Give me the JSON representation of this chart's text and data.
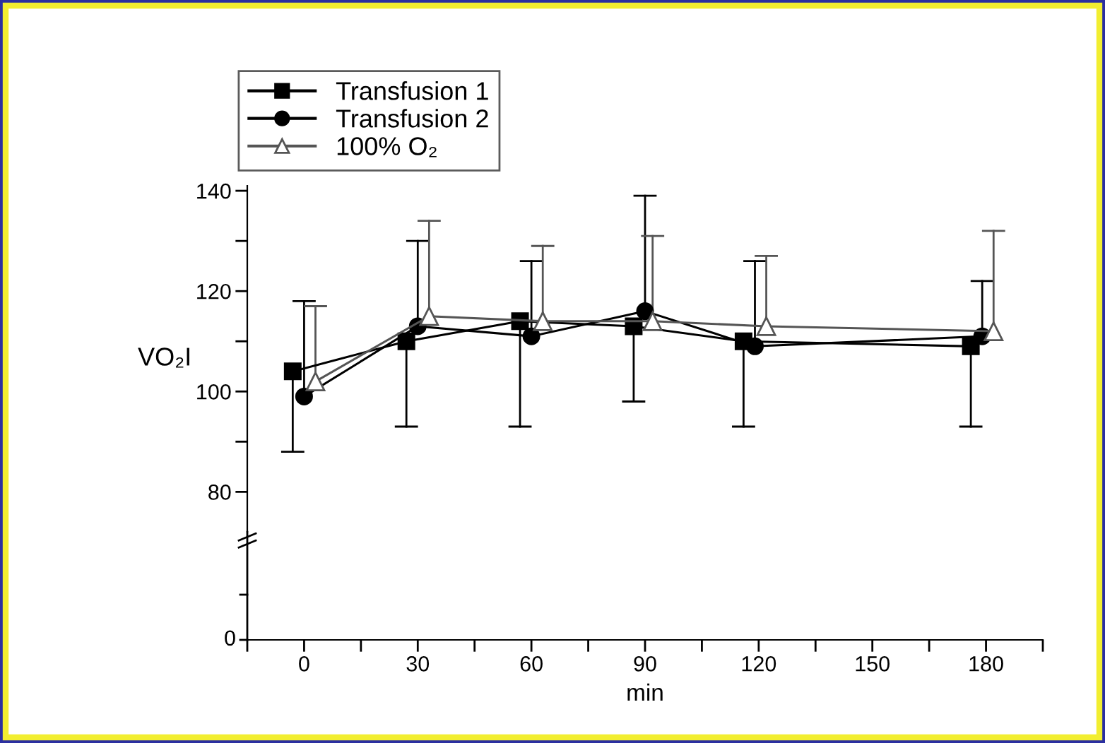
{
  "chart_data": {
    "type": "line",
    "ylabel": "VO₂I",
    "xlabel": "min",
    "xlim": [
      -15,
      195
    ],
    "ylim": [
      72,
      141
    ],
    "yticks": [
      80,
      {
        "value": 90,
        "label": null
      },
      100,
      {
        "value": 110,
        "label": null
      },
      120,
      {
        "value": 130,
        "label": null
      },
      140
    ],
    "xticks": [
      0,
      30,
      60,
      90,
      120,
      150,
      180
    ],
    "legend": "top left",
    "annotations": [
      "0"
    ],
    "series": [
      {
        "name": "Transfusion 1",
        "color": "#000000",
        "marker": "square",
        "x": [
          -3,
          27,
          57,
          87,
          116,
          176
        ],
        "values": [
          104,
          110,
          114,
          113,
          110,
          109
        ],
        "errors": [
          [
            88,
            104
          ],
          [
            93,
            110
          ],
          [
            93,
            114
          ],
          [
            98,
            113
          ],
          [
            93,
            110
          ],
          [
            93,
            109
          ]
        ]
      },
      {
        "name": "Transfusion 2",
        "color": "#000000",
        "marker": "circle",
        "x": [
          0,
          30,
          60,
          90,
          119,
          179
        ],
        "values": [
          99,
          113,
          111,
          116,
          109,
          111
        ],
        "errors": [
          [
            99,
            118
          ],
          [
            113,
            130
          ],
          [
            111,
            126
          ],
          [
            116,
            139
          ],
          [
            109,
            126
          ],
          [
            111,
            122
          ]
        ]
      },
      {
        "name": "100% O₂",
        "color": "#555555",
        "marker": "triangle",
        "x": [
          3,
          33,
          63,
          92,
          122,
          182
        ],
        "values": [
          102,
          115,
          114,
          114,
          113,
          112
        ],
        "errors": [
          [
            102,
            117
          ],
          [
            115,
            134
          ],
          [
            114,
            129
          ],
          [
            114,
            131
          ],
          [
            113,
            127
          ],
          [
            112,
            132
          ]
        ]
      }
    ]
  }
}
